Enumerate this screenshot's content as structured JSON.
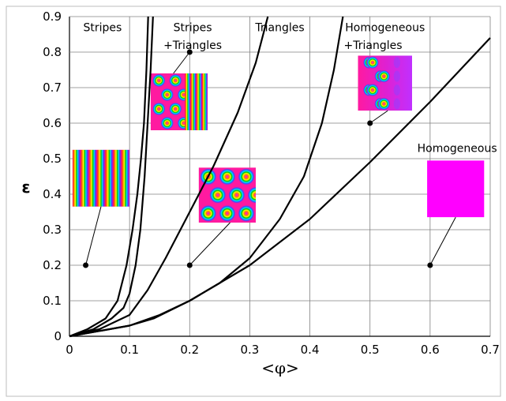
{
  "chart_data": {
    "type": "line",
    "xlabel": "<φ>",
    "ylabel": "ε",
    "xlim": [
      0,
      0.7
    ],
    "ylim": [
      0,
      0.9
    ],
    "xticks": [
      "0",
      "0.1",
      "0.2",
      "0.3",
      "0.4",
      "0.5",
      "0.6",
      "0.7"
    ],
    "yticks": [
      "0",
      "0.1",
      "0.2",
      "0.3",
      "0.4",
      "0.5",
      "0.6",
      "0.7",
      "0.8",
      "0.9"
    ],
    "grid": true,
    "series": [
      {
        "x": [
          0,
          0.03,
          0.06,
          0.08,
          0.095,
          0.105,
          0.113,
          0.119,
          0.124,
          0.128,
          0.131
        ],
        "y": [
          0,
          0.02,
          0.05,
          0.1,
          0.2,
          0.3,
          0.4,
          0.5,
          0.6,
          0.75,
          0.9
        ]
      },
      {
        "x": [
          0,
          0.04,
          0.07,
          0.09,
          0.1,
          0.11,
          0.118,
          0.125,
          0.13,
          0.135,
          0.139
        ],
        "y": [
          0,
          0.02,
          0.05,
          0.08,
          0.12,
          0.2,
          0.3,
          0.45,
          0.6,
          0.75,
          0.9
        ]
      },
      {
        "x": [
          0,
          0.05,
          0.1,
          0.13,
          0.16,
          0.2,
          0.24,
          0.28,
          0.31,
          0.33
        ],
        "y": [
          0,
          0.02,
          0.06,
          0.13,
          0.22,
          0.35,
          0.48,
          0.63,
          0.77,
          0.9
        ]
      },
      {
        "x": [
          0,
          0.1,
          0.15,
          0.2,
          0.25,
          0.3,
          0.35,
          0.39,
          0.42,
          0.44,
          0.455
        ],
        "y": [
          0,
          0.03,
          0.06,
          0.1,
          0.15,
          0.22,
          0.33,
          0.45,
          0.6,
          0.75,
          0.9
        ]
      },
      {
        "x": [
          0,
          0.1,
          0.14,
          0.2,
          0.3,
          0.4,
          0.5,
          0.6,
          0.7
        ],
        "y": [
          0,
          0.03,
          0.05,
          0.1,
          0.2,
          0.33,
          0.49,
          0.66,
          0.84
        ]
      }
    ],
    "regions": [
      {
        "label": "Stripes",
        "x": 0.055,
        "y": 0.87
      },
      {
        "label": "Stripes",
        "x": 0.205,
        "y": 0.87
      },
      {
        "label": "+Triangles",
        "x": 0.205,
        "y": 0.82
      },
      {
        "label": "Triangles",
        "x": 0.35,
        "y": 0.87
      },
      {
        "label": "Homogeneous",
        "x": 0.525,
        "y": 0.87
      },
      {
        "label": "+Triangles",
        "x": 0.505,
        "y": 0.82
      },
      {
        "label": "Homogeneous",
        "x": 0.645,
        "y": 0.53
      }
    ],
    "annotations": [
      {
        "pattern": "stripes",
        "point": [
          0.027,
          0.2
        ],
        "inset": [
          0.005,
          0.525,
          0.1,
          0.365
        ]
      },
      {
        "pattern": "stripes-triangles",
        "point": [
          0.2,
          0.2
        ],
        "inset": [
          0.215,
          0.475,
          0.31,
          0.32
        ]
      },
      {
        "pattern": "triangles",
        "point": [
          0.2,
          0.8
        ],
        "inset": [
          0.135,
          0.74,
          0.23,
          0.58
        ]
      },
      {
        "pattern": "homogeneous-triangles",
        "point": [
          0.5,
          0.6
        ],
        "inset": [
          0.48,
          0.79,
          0.57,
          0.635
        ]
      },
      {
        "pattern": "homogeneous",
        "point": [
          0.6,
          0.2
        ],
        "inset": [
          0.595,
          0.495,
          0.69,
          0.335
        ]
      }
    ],
    "colors": {
      "pink": "#ff1aa0",
      "magenta": "#ff00ff",
      "line": "#000000"
    }
  }
}
